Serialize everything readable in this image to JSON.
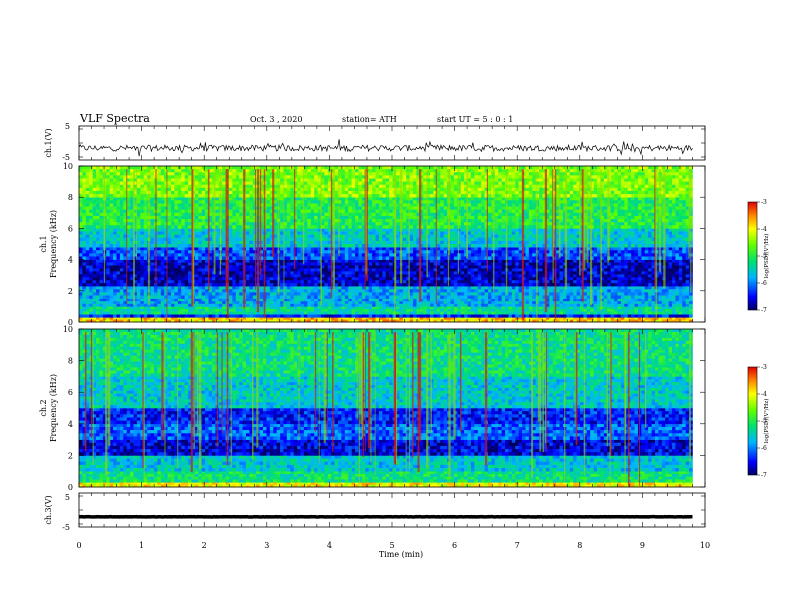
{
  "header": {
    "title": "VLF Spectra",
    "date": "Oct. 3  , 2020",
    "station": "station= ATH",
    "start": "start  UT  =   5 : 0  : 1"
  },
  "colors": {
    "waveform": "#000000",
    "spectrum_low": "#0000c0",
    "spectrum_mid": "#22d02a",
    "spectrum_high": "#d21a10"
  },
  "chart_data": [
    {
      "type": "line",
      "name": "ch1-waveform",
      "ylabel": "ch.1(V)",
      "ylim": [
        -5,
        5
      ],
      "yticks": [
        "5",
        "-5"
      ],
      "xlim": [
        0,
        10
      ],
      "baseline": -1.5,
      "amplitude": 0.9,
      "x_end": 9.8
    },
    {
      "type": "heatmap",
      "name": "ch1-spectrogram",
      "ylabel_line1": "ch.1",
      "ylabel_line2": "Frequency  (kHz)",
      "ylim": [
        0,
        10
      ],
      "yticks": [
        "0",
        "2",
        "4",
        "6",
        "8",
        "10"
      ],
      "xlim": [
        0,
        10
      ],
      "x_end": 9.8,
      "bands": [
        {
          "f0": 0.0,
          "f1": 0.3,
          "level": 0.8
        },
        {
          "f0": 0.3,
          "f1": 0.5,
          "level": 0.15
        },
        {
          "f0": 0.5,
          "f1": 1.0,
          "level": 0.42
        },
        {
          "f0": 1.0,
          "f1": 1.5,
          "level": 0.3
        },
        {
          "f0": 1.5,
          "f1": 2.3,
          "level": 0.3
        },
        {
          "f0": 2.3,
          "f1": 4.0,
          "level": 0.08
        },
        {
          "f0": 4.0,
          "f1": 4.8,
          "level": 0.2
        },
        {
          "f0": 4.8,
          "f1": 6.0,
          "level": 0.36
        },
        {
          "f0": 6.0,
          "f1": 8.0,
          "level": 0.5
        },
        {
          "f0": 8.0,
          "f1": 10.0,
          "level": 0.62
        }
      ],
      "colorbar": {
        "ticks": [
          "-3",
          "-4",
          "-5",
          "-6",
          "-7"
        ],
        "label": "log(PSD)(V²/Hz)",
        "range": [
          -7,
          -3
        ]
      }
    },
    {
      "type": "heatmap",
      "name": "ch2-spectrogram",
      "ylabel_line1": "ch.2",
      "ylabel_line2": "Frequency  (kHz)",
      "ylim": [
        0,
        10
      ],
      "yticks": [
        "0",
        "2",
        "4",
        "6",
        "8",
        "10"
      ],
      "xlim": [
        0,
        10
      ],
      "x_end": 9.8,
      "bands": [
        {
          "f0": 0.0,
          "f1": 0.3,
          "level": 0.75
        },
        {
          "f0": 0.3,
          "f1": 1.0,
          "level": 0.45
        },
        {
          "f0": 1.0,
          "f1": 2.0,
          "level": 0.35
        },
        {
          "f0": 2.0,
          "f1": 3.0,
          "level": 0.1
        },
        {
          "f0": 3.0,
          "f1": 4.0,
          "level": 0.22
        },
        {
          "f0": 4.0,
          "f1": 5.0,
          "level": 0.15
        },
        {
          "f0": 5.0,
          "f1": 7.0,
          "level": 0.36
        },
        {
          "f0": 7.0,
          "f1": 10.0,
          "level": 0.44
        }
      ],
      "colorbar": {
        "ticks": [
          "-3",
          "-4",
          "-5",
          "-6",
          "-7"
        ],
        "label": "log(PSD)(V²/Hz)",
        "range": [
          -7,
          -3
        ]
      }
    },
    {
      "type": "line",
      "name": "ch3-waveform",
      "ylabel": "ch.3(V)",
      "ylim": [
        -5,
        5
      ],
      "yticks": [
        "5",
        "-5"
      ],
      "xlim": [
        0,
        10
      ],
      "baseline": -2,
      "amplitude": 0.05,
      "x_end": 9.8,
      "xlabel": "Time  (min)",
      "xticks": [
        "0",
        "1",
        "2",
        "3",
        "4",
        "5",
        "6",
        "7",
        "8",
        "9",
        "10"
      ]
    }
  ]
}
